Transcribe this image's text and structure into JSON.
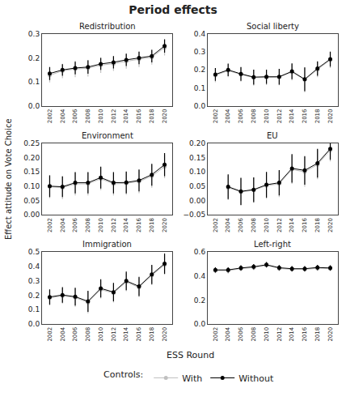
{
  "title": "Period effects",
  "x_label": "ESS Round",
  "y_label": "Effect attitude on Vote Choice",
  "legend_title": "Controls:",
  "legend": "bottom",
  "chart_data": [
    {
      "type": "line",
      "title": "Redistribution",
      "x": [
        2002,
        2004,
        2006,
        2008,
        2010,
        2012,
        2014,
        2016,
        2018,
        2020
      ],
      "xlim": [
        2000.8,
        2021.2
      ],
      "xticks": [
        2002,
        2004,
        2006,
        2008,
        2010,
        2012,
        2014,
        2016,
        2018,
        2020
      ],
      "ylim": [
        0.0,
        0.3
      ],
      "yticks": [
        {
          "value": 0.0,
          "label": "0.0"
        },
        0.1,
        0.2,
        0.3
      ],
      "grid": false,
      "series": [
        {
          "name": "With",
          "color": "#c0c0c0",
          "marker": "circle",
          "line_style": "solid",
          "values": [
            0.128,
            0.146,
            0.154,
            0.157,
            0.17,
            0.176,
            0.186,
            0.194,
            0.203,
            0.243
          ],
          "lower": [
            0.098,
            0.116,
            0.12,
            0.122,
            0.138,
            0.146,
            0.155,
            0.162,
            0.172,
            0.21
          ],
          "upper": [
            0.158,
            0.176,
            0.188,
            0.192,
            0.202,
            0.206,
            0.217,
            0.226,
            0.234,
            0.276
          ]
        },
        {
          "name": "Without",
          "color": "#000000",
          "marker": "circle",
          "line_style": "solid",
          "values": [
            0.135,
            0.15,
            0.158,
            0.162,
            0.175,
            0.182,
            0.192,
            0.2,
            0.208,
            0.25
          ],
          "lower": [
            0.108,
            0.126,
            0.132,
            0.134,
            0.15,
            0.156,
            0.166,
            0.174,
            0.182,
            0.222
          ],
          "upper": [
            0.162,
            0.174,
            0.184,
            0.19,
            0.2,
            0.208,
            0.218,
            0.226,
            0.234,
            0.278
          ]
        }
      ]
    },
    {
      "type": "line",
      "title": "Social liberty",
      "x": [
        2002,
        2004,
        2006,
        2008,
        2010,
        2012,
        2014,
        2016,
        2018,
        2020
      ],
      "xlim": [
        2000.8,
        2021.2
      ],
      "xticks": [
        2002,
        2004,
        2006,
        2008,
        2010,
        2012,
        2014,
        2016,
        2018,
        2020
      ],
      "ylim": [
        0.0,
        0.4
      ],
      "yticks": [
        {
          "value": 0.0,
          "label": "0.0"
        },
        0.1,
        0.2,
        0.3,
        0.4
      ],
      "grid": false,
      "series": [
        {
          "name": "With",
          "color": "#c0c0c0",
          "marker": "circle",
          "line_style": "solid",
          "values": [
            0.17,
            0.196,
            0.175,
            0.157,
            0.158,
            0.16,
            0.188,
            0.145,
            0.202,
            0.255
          ],
          "lower": [
            0.132,
            0.16,
            0.135,
            0.112,
            0.116,
            0.115,
            0.142,
            0.075,
            0.16,
            0.21
          ],
          "upper": [
            0.208,
            0.232,
            0.215,
            0.202,
            0.2,
            0.205,
            0.234,
            0.215,
            0.244,
            0.3
          ]
        },
        {
          "name": "Without",
          "color": "#000000",
          "marker": "circle",
          "line_style": "solid",
          "values": [
            0.175,
            0.2,
            0.178,
            0.16,
            0.162,
            0.162,
            0.192,
            0.148,
            0.208,
            0.26
          ],
          "lower": [
            0.14,
            0.165,
            0.14,
            0.118,
            0.122,
            0.118,
            0.148,
            0.082,
            0.168,
            0.218
          ],
          "upper": [
            0.21,
            0.235,
            0.216,
            0.202,
            0.202,
            0.206,
            0.236,
            0.214,
            0.248,
            0.302
          ]
        }
      ]
    },
    {
      "type": "line",
      "title": "Environment",
      "x": [
        2002,
        2004,
        2006,
        2008,
        2010,
        2012,
        2014,
        2016,
        2018,
        2020
      ],
      "xlim": [
        2000.8,
        2021.2
      ],
      "xticks": [
        2002,
        2004,
        2006,
        2008,
        2010,
        2012,
        2014,
        2016,
        2018,
        2020
      ],
      "ylim": [
        0.0,
        0.25
      ],
      "yticks": [
        {
          "value": 0.0,
          "label": "0.00"
        },
        0.05,
        {
          "value": 0.1,
          "label": "0.10"
        },
        0.15,
        {
          "value": 0.2,
          "label": "0.20"
        },
        0.25
      ],
      "grid": false,
      "series": [
        {
          "name": "With",
          "color": "#c0c0c0",
          "marker": "circle",
          "line_style": "solid",
          "values": [
            0.098,
            0.095,
            0.108,
            0.108,
            0.126,
            0.108,
            0.11,
            0.116,
            0.135,
            0.168
          ],
          "lower": [
            0.058,
            0.055,
            0.068,
            0.068,
            0.086,
            0.068,
            0.07,
            0.076,
            0.095,
            0.128
          ],
          "upper": [
            0.138,
            0.135,
            0.148,
            0.148,
            0.166,
            0.148,
            0.15,
            0.156,
            0.175,
            0.208
          ]
        },
        {
          "name": "Without",
          "color": "#000000",
          "marker": "circle",
          "line_style": "solid",
          "values": [
            0.1,
            0.098,
            0.112,
            0.112,
            0.13,
            0.112,
            0.113,
            0.12,
            0.14,
            0.175
          ],
          "lower": [
            0.062,
            0.062,
            0.075,
            0.075,
            0.092,
            0.075,
            0.075,
            0.082,
            0.102,
            0.135
          ],
          "upper": [
            0.138,
            0.134,
            0.149,
            0.149,
            0.168,
            0.149,
            0.151,
            0.158,
            0.178,
            0.215
          ]
        }
      ]
    },
    {
      "type": "line",
      "title": "EU",
      "x": [
        2002,
        2004,
        2006,
        2008,
        2010,
        2012,
        2014,
        2016,
        2018,
        2020
      ],
      "xlim": [
        2000.8,
        2021.2
      ],
      "xticks": [
        2002,
        2004,
        2006,
        2008,
        2010,
        2012,
        2014,
        2016,
        2018,
        2020
      ],
      "ylim": [
        -0.05,
        0.2
      ],
      "yticks": [
        {
          "value": -0.05,
          "label": "−0.05"
        },
        {
          "value": 0.0,
          "label": "0.00"
        },
        0.05,
        {
          "value": 0.1,
          "label": "0.10"
        },
        0.15,
        {
          "value": 0.2,
          "label": "0.20"
        }
      ],
      "grid": false,
      "series": [
        {
          "name": "With",
          "color": "#c0c0c0",
          "marker": "circle",
          "line_style": "solid",
          "values": [
            null,
            0.045,
            0.03,
            0.036,
            0.052,
            0.058,
            0.108,
            0.1,
            0.125,
            0.175
          ],
          "lower": [
            null,
            0.002,
            -0.018,
            -0.008,
            0.006,
            0.012,
            0.058,
            0.048,
            0.074,
            0.136
          ],
          "upper": [
            null,
            0.088,
            0.078,
            0.08,
            0.098,
            0.104,
            0.158,
            0.152,
            0.176,
            0.214
          ]
        },
        {
          "name": "Without",
          "color": "#000000",
          "marker": "circle",
          "line_style": "solid",
          "values": [
            null,
            0.048,
            0.032,
            0.038,
            0.055,
            0.062,
            0.112,
            0.105,
            0.13,
            0.18
          ],
          "lower": [
            null,
            0.005,
            -0.015,
            -0.005,
            0.01,
            0.018,
            0.062,
            0.055,
            0.08,
            0.142
          ],
          "upper": [
            null,
            0.091,
            0.079,
            0.081,
            0.1,
            0.106,
            0.162,
            0.155,
            0.18,
            0.218
          ]
        }
      ]
    },
    {
      "type": "line",
      "title": "Immigration",
      "x": [
        2002,
        2004,
        2006,
        2008,
        2010,
        2012,
        2014,
        2016,
        2018,
        2020
      ],
      "xlim": [
        2000.8,
        2021.2
      ],
      "xticks": [
        2002,
        2004,
        2006,
        2008,
        2010,
        2012,
        2014,
        2016,
        2018,
        2020
      ],
      "ylim": [
        0.0,
        0.5
      ],
      "yticks": [
        {
          "value": 0.0,
          "label": "0.0"
        },
        0.1,
        0.2,
        0.3,
        0.4,
        0.5
      ],
      "grid": false,
      "series": [
        {
          "name": "With",
          "color": "#c0c0c0",
          "marker": "circle",
          "line_style": "solid",
          "values": [
            0.182,
            0.196,
            0.184,
            0.15,
            0.24,
            0.215,
            0.292,
            0.255,
            0.338,
            0.412
          ],
          "lower": [
            0.128,
            0.142,
            0.12,
            0.075,
            0.178,
            0.15,
            0.228,
            0.188,
            0.27,
            0.342
          ],
          "upper": [
            0.236,
            0.25,
            0.248,
            0.225,
            0.302,
            0.28,
            0.356,
            0.322,
            0.406,
            0.482
          ]
        },
        {
          "name": "Without",
          "color": "#000000",
          "marker": "circle",
          "line_style": "solid",
          "values": [
            0.188,
            0.202,
            0.19,
            0.158,
            0.248,
            0.222,
            0.3,
            0.262,
            0.345,
            0.42
          ],
          "lower": [
            0.135,
            0.148,
            0.128,
            0.085,
            0.185,
            0.158,
            0.235,
            0.195,
            0.278,
            0.35
          ],
          "upper": [
            0.241,
            0.256,
            0.252,
            0.231,
            0.311,
            0.286,
            0.365,
            0.329,
            0.412,
            0.49
          ]
        }
      ]
    },
    {
      "type": "line",
      "title": "Left-right",
      "x": [
        2002,
        2004,
        2006,
        2008,
        2010,
        2012,
        2014,
        2016,
        2018,
        2020
      ],
      "xlim": [
        2000.8,
        2021.2
      ],
      "xticks": [
        2002,
        2004,
        2006,
        2008,
        2010,
        2012,
        2014,
        2016,
        2018,
        2020
      ],
      "ylim": [
        0.0,
        0.6
      ],
      "yticks": [
        {
          "value": 0.0,
          "label": "0.0"
        },
        0.2,
        0.4,
        0.6
      ],
      "grid": false,
      "series": [
        {
          "name": "With",
          "color": "#c0c0c0",
          "marker": "circle",
          "line_style": "solid",
          "values": [
            0.446,
            0.446,
            0.462,
            0.472,
            0.49,
            0.464,
            0.456,
            0.456,
            0.466,
            0.462
          ],
          "lower": [
            0.424,
            0.422,
            0.44,
            0.45,
            0.468,
            0.442,
            0.434,
            0.434,
            0.444,
            0.44
          ],
          "upper": [
            0.468,
            0.47,
            0.484,
            0.494,
            0.512,
            0.486,
            0.478,
            0.478,
            0.488,
            0.484
          ]
        },
        {
          "name": "Without",
          "color": "#000000",
          "marker": "circle",
          "line_style": "solid",
          "values": [
            0.452,
            0.452,
            0.468,
            0.478,
            0.495,
            0.47,
            0.462,
            0.462,
            0.472,
            0.468
          ],
          "lower": [
            0.43,
            0.43,
            0.446,
            0.456,
            0.473,
            0.448,
            0.44,
            0.44,
            0.45,
            0.446
          ],
          "upper": [
            0.474,
            0.474,
            0.49,
            0.5,
            0.517,
            0.492,
            0.484,
            0.484,
            0.494,
            0.49
          ]
        }
      ]
    }
  ]
}
